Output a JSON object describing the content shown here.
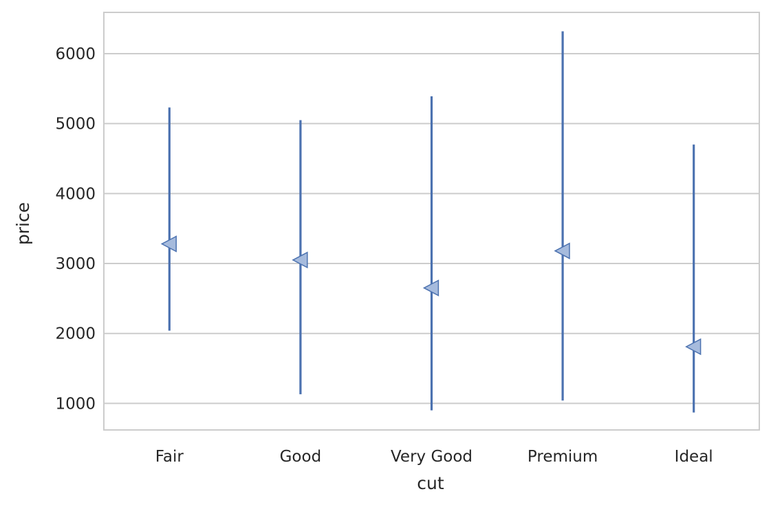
{
  "chart_data": {
    "type": "point-range",
    "xlabel": "cut",
    "ylabel": "price",
    "categories": [
      "Fair",
      "Good",
      "Very Good",
      "Premium",
      "Ideal"
    ],
    "series": [
      {
        "values": [
          3280,
          3050,
          2650,
          3180,
          1810
        ],
        "ranges": [
          [
            2040,
            5230
          ],
          [
            1130,
            5050
          ],
          [
            900,
            5390
          ],
          [
            1040,
            6320
          ],
          [
            870,
            4700
          ]
        ]
      }
    ],
    "ylim": [
      620,
      6590
    ],
    "yticks": [
      1000,
      2000,
      3000,
      4000,
      5000,
      6000
    ],
    "grid": "horizontal",
    "marker": "left-pointing triangle",
    "colors": {
      "line": "#4c72b0",
      "marker_fill": "#a6bbdd",
      "marker_edge": "#4c72b0",
      "grid": "#cccccc",
      "frame": "#cccccc"
    }
  }
}
